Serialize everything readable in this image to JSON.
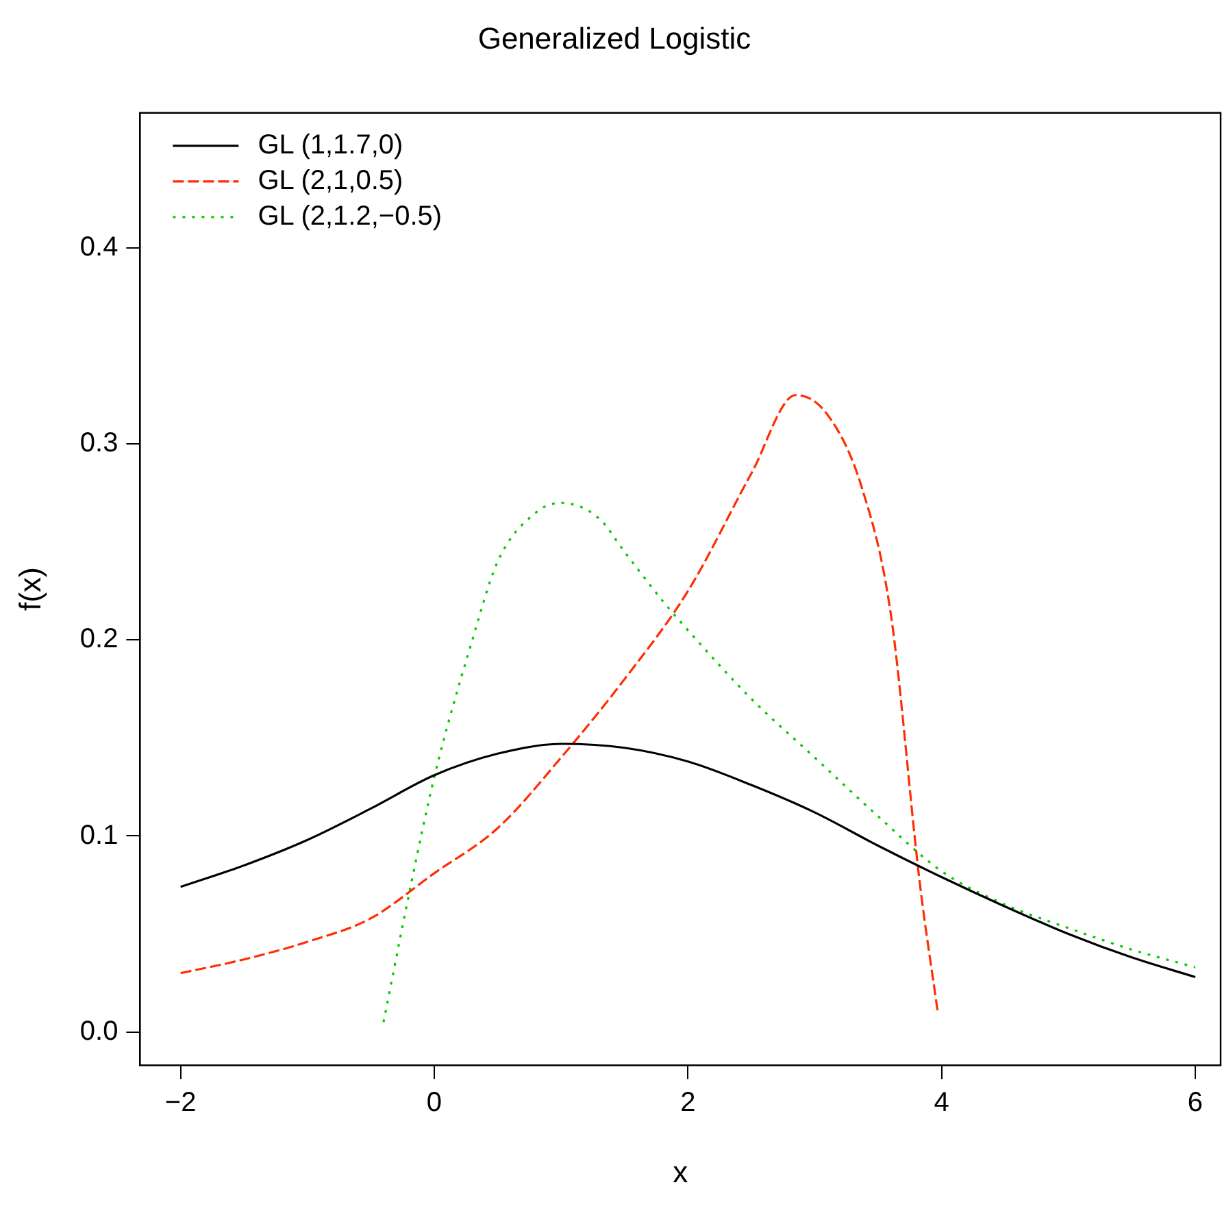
{
  "chart_data": {
    "type": "line",
    "title": "Generalized Logistic",
    "xlabel": "x",
    "ylabel": "f(x)",
    "xlim": [
      -2.32,
      6.2
    ],
    "xticks": [
      {
        "value": -2,
        "label": "−2"
      },
      0,
      2,
      4,
      6
    ],
    "ylim": [
      -0.017,
      0.469
    ],
    "yticks": [
      {
        "value": 0,
        "label": "0.0"
      },
      0.1,
      0.2,
      0.3,
      0.4
    ],
    "grid": false,
    "legend": "top left",
    "marker": "none",
    "series": [
      {
        "name": "GL (1,1.7,0)",
        "color": "#000000",
        "line_style": "solid",
        "x": [
          -2,
          -1.5,
          -1,
          -0.5,
          0,
          0.5,
          1,
          1.5,
          2,
          2.5,
          3,
          3.5,
          4,
          4.5,
          5,
          5.5,
          6
        ],
        "values": [
          0.074,
          0.085,
          0.098,
          0.114,
          0.131,
          0.142,
          0.147,
          0.145,
          0.138,
          0.126,
          0.112,
          0.095,
          0.079,
          0.064,
          0.05,
          0.038,
          0.028
        ]
      },
      {
        "name": "GL (2,1,0.5)",
        "color": "#ff2d00",
        "line_style": "dashed",
        "x": [
          -2,
          -1.5,
          -1,
          -0.5,
          0,
          0.5,
          1,
          1.5,
          2,
          2.5,
          2.85,
          3.1,
          3.37,
          3.6,
          3.83,
          3.97
        ],
        "values": [
          0.03,
          0.037,
          0.046,
          0.058,
          0.081,
          0.104,
          0.14,
          0.18,
          0.225,
          0.285,
          0.325,
          0.315,
          0.278,
          0.213,
          0.075,
          0.01
        ]
      },
      {
        "name": "GL (2,1.2,−0.5)",
        "color": "#00cc00",
        "line_style": "dotted",
        "x": [
          -0.4,
          -0.2,
          0,
          0.3,
          0.5,
          0.8,
          1,
          1.3,
          1.5,
          1.8,
          2,
          2.5,
          3,
          3.5,
          4,
          4.5,
          5,
          5.5,
          6
        ],
        "values": [
          0.005,
          0.07,
          0.13,
          0.2,
          0.24,
          0.265,
          0.27,
          0.262,
          0.245,
          0.22,
          0.205,
          0.17,
          0.14,
          0.11,
          0.082,
          0.065,
          0.053,
          0.042,
          0.033
        ]
      }
    ]
  }
}
